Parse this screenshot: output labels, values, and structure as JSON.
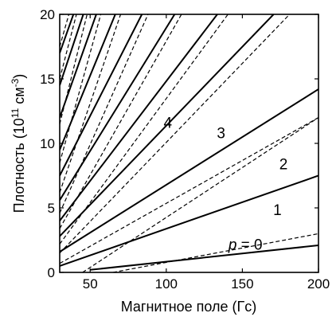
{
  "chart_data": {
    "type": "line",
    "xlabel": "Магнитное поле (Гс)",
    "ylabel": "Плотность (10",
    "ylabel_exponent": "11",
    "ylabel_unit": " см",
    "ylabel_unit_exponent": "-3",
    "ylabel_close": ")",
    "xlim": [
      30,
      200
    ],
    "ylim": [
      0,
      20
    ],
    "x_ticks": [
      50,
      100,
      150,
      200
    ],
    "y_ticks": [
      0,
      5,
      10,
      15,
      20
    ],
    "grid": false,
    "line_colors": {
      "solid": "#000000",
      "dashed": "#000000"
    },
    "annotations": [
      {
        "text": "p",
        "italic": true,
        "suffix": " = 0",
        "x": 152,
        "y": 1.75
      },
      {
        "text": "1",
        "x": 173,
        "y": 4.45
      },
      {
        "text": "2",
        "x": 177,
        "y": 8.0
      },
      {
        "text": "3",
        "x": 136,
        "y": 10.4
      },
      {
        "text": "4",
        "x": 101,
        "y": 11.2
      }
    ],
    "series": [
      {
        "style": "solid",
        "x": [
          50,
          200
        ],
        "y": [
          0.2,
          2.1
        ]
      },
      {
        "style": "solid",
        "x": [
          30,
          200
        ],
        "y": [
          0.5,
          7.5
        ]
      },
      {
        "style": "solid",
        "x": [
          30,
          200
        ],
        "y": [
          1.6,
          14.2
        ]
      },
      {
        "style": "solid",
        "x": [
          30,
          170.5
        ],
        "y": [
          2.8,
          20
        ]
      },
      {
        "style": "solid",
        "x": [
          30,
          133.5
        ],
        "y": [
          4.0,
          20
        ]
      },
      {
        "style": "solid",
        "x": [
          30,
          105.5
        ],
        "y": [
          5.6,
          20
        ]
      },
      {
        "style": "solid",
        "x": [
          30,
          84
        ],
        "y": [
          7.5,
          20
        ]
      },
      {
        "style": "solid",
        "x": [
          30,
          66.5
        ],
        "y": [
          9.5,
          20
        ]
      },
      {
        "style": "solid",
        "x": [
          30,
          54
        ],
        "y": [
          12.0,
          20
        ]
      },
      {
        "style": "solid",
        "x": [
          30,
          45.5
        ],
        "y": [
          14.5,
          20
        ]
      },
      {
        "style": "solid",
        "x": [
          30,
          39
        ],
        "y": [
          17.0,
          20
        ]
      },
      {
        "style": "dashed",
        "x": [
          65,
          200
        ],
        "y": [
          0,
          3.0
        ]
      },
      {
        "style": "dashed",
        "x": [
          45,
          200
        ],
        "y": [
          0,
          12.0
        ]
      },
      {
        "style": "dashed",
        "x": [
          30,
          200
        ],
        "y": [
          0.7,
          12.0
        ]
      },
      {
        "style": "dashed",
        "x": [
          30,
          181
        ],
        "y": [
          1.5,
          20
        ]
      },
      {
        "style": "dashed",
        "x": [
          30,
          140.5
        ],
        "y": [
          2.2,
          20
        ]
      },
      {
        "style": "dashed",
        "x": [
          30,
          110
        ],
        "y": [
          3.4,
          20
        ]
      },
      {
        "style": "dashed",
        "x": [
          30,
          88
        ],
        "y": [
          4.6,
          20
        ]
      },
      {
        "style": "dashed",
        "x": [
          30,
          70
        ],
        "y": [
          6.2,
          20
        ]
      },
      {
        "style": "dashed",
        "x": [
          30,
          57
        ],
        "y": [
          8.5,
          20
        ]
      },
      {
        "style": "dashed",
        "x": [
          30,
          48
        ],
        "y": [
          11.5,
          20
        ]
      },
      {
        "style": "dashed",
        "x": [
          30,
          41
        ],
        "y": [
          15.0,
          20
        ]
      },
      {
        "style": "dashed",
        "x": [
          30,
          36
        ],
        "y": [
          17.5,
          20
        ]
      }
    ]
  }
}
